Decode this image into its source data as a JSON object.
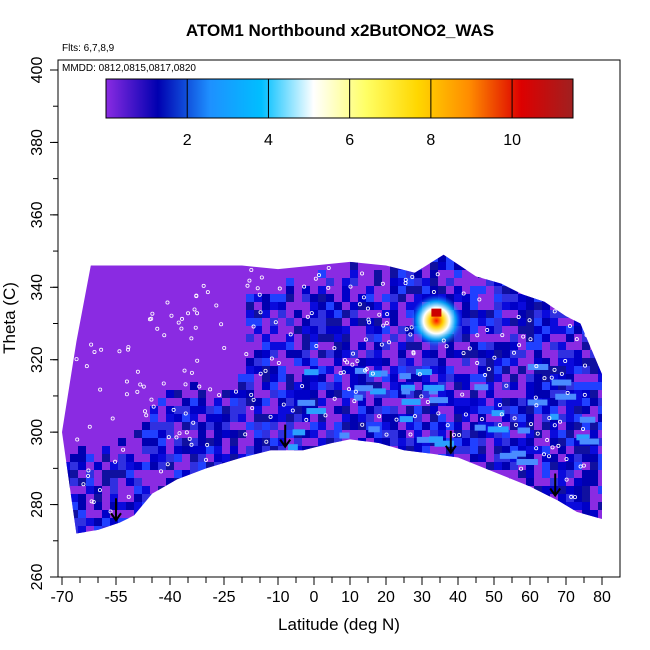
{
  "chart_data": {
    "type": "heatmap",
    "title": "ATOM1 Northbound x2ButONO2_WAS",
    "xlabel": "Latitude (deg N)",
    "ylabel": "Theta (C)",
    "xlim": [
      -70,
      80
    ],
    "ylim": [
      260,
      400
    ],
    "x_ticks": [
      -70,
      -55,
      -40,
      -25,
      -10,
      0,
      10,
      20,
      30,
      40,
      50,
      60,
      70,
      80
    ],
    "y_ticks": [
      260,
      280,
      300,
      320,
      340,
      360,
      380,
      400
    ],
    "notes": {
      "flights": "Flts: 6,7,8,9",
      "dates": "MMDD: 0812,0815,0817,0820"
    },
    "colorbar": {
      "range": [
        0,
        11.5
      ],
      "ticks": [
        2,
        4,
        6,
        8,
        10
      ],
      "colors": [
        "#8a2be2",
        "#0000b0",
        "#1e90ff",
        "#00bfff",
        "#ffffff",
        "#ffff66",
        "#ffd700",
        "#ff8c00",
        "#dd0000",
        "#a02020"
      ]
    },
    "cross_section": {
      "surface_theta": [
        [
          -66,
          272
        ],
        [
          -60,
          273
        ],
        [
          -54,
          275
        ],
        [
          -50,
          277
        ],
        [
          -45,
          283
        ],
        [
          -38,
          287
        ],
        [
          -30,
          290
        ],
        [
          -20,
          293
        ],
        [
          -12,
          295
        ],
        [
          -3,
          295
        ],
        [
          5,
          297
        ],
        [
          10,
          298
        ],
        [
          18,
          297
        ],
        [
          25,
          295
        ],
        [
          33,
          294
        ],
        [
          40,
          293
        ],
        [
          50,
          289
        ],
        [
          60,
          285
        ],
        [
          68,
          281
        ],
        [
          73,
          278
        ],
        [
          80,
          276
        ]
      ],
      "top_theta": [
        [
          -70,
          300
        ],
        [
          -66,
          325
        ],
        [
          -62,
          346
        ],
        [
          -40,
          346
        ],
        [
          -20,
          346
        ],
        [
          -10,
          345
        ],
        [
          0,
          346
        ],
        [
          10,
          347
        ],
        [
          20,
          346
        ],
        [
          28,
          344
        ],
        [
          36,
          349
        ],
        [
          45,
          343
        ],
        [
          52,
          341
        ],
        [
          58,
          338
        ],
        [
          64,
          336
        ],
        [
          70,
          332
        ],
        [
          74,
          330
        ],
        [
          80,
          316
        ]
      ],
      "hotspot": {
        "lat": 34,
        "theta": 333,
        "value": 11.2
      }
    },
    "profile_markers_lat": [
      -55,
      -8,
      38,
      67
    ]
  }
}
